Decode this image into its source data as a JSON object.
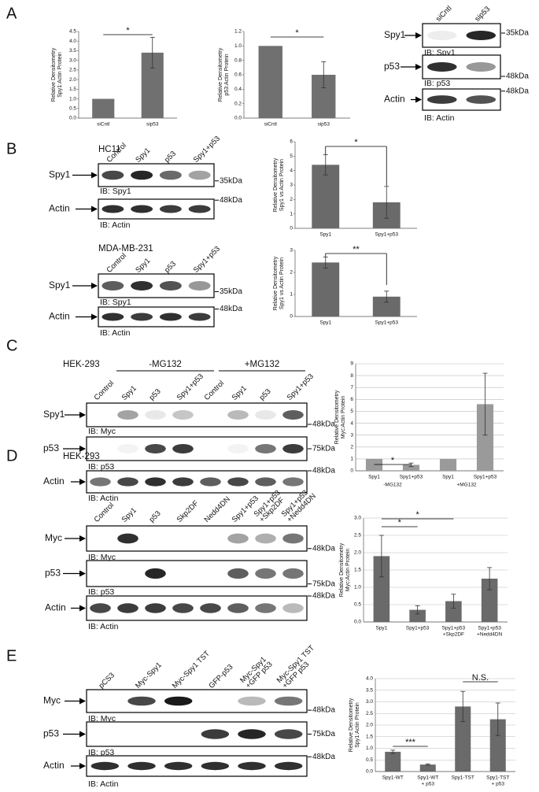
{
  "panel_labels": [
    "A",
    "B",
    "C",
    "D",
    "E"
  ],
  "blots": [
    {
      "lanes": [
        "siCntl",
        "sip53"
      ],
      "rows": [
        {
          "label": "Spy1",
          "ib": "IB: Spy1",
          "marker": "35kDa"
        },
        {
          "label": "p53",
          "ib": "IB: p53",
          "marker": "48kDa"
        },
        {
          "label": "Actin",
          "ib": "IB: Actin",
          "marker": "48kDa"
        }
      ]
    },
    {
      "cell_line": "HC11",
      "lanes": [
        "Control",
        "Spy1",
        "p53",
        "Spy1+p53"
      ],
      "rows": [
        {
          "label": "Spy1",
          "ib": "IB: Spy1",
          "marker": "35kDa"
        },
        {
          "label": "Actin",
          "ib": "IB: Actin",
          "marker": "48kDa"
        }
      ]
    },
    {
      "cell_line": "MDA-MB-231",
      "lanes": [
        "Control",
        "Spy1",
        "p53",
        "Spy1+p53"
      ],
      "rows": [
        {
          "label": "Spy1",
          "ib": "IB: Spy1",
          "marker": "35kDa"
        },
        {
          "label": "Actin",
          "ib": "IB: Actin",
          "marker": "48kDa"
        }
      ]
    },
    {
      "cell_line": "HEK-293",
      "groups": [
        "-MG132",
        "+MG132"
      ],
      "lanes": [
        "Control",
        "Spy1",
        "p53",
        "Spy1+p53",
        "Control",
        "Spy1",
        "p53",
        "Spy1+p53"
      ],
      "rows": [
        {
          "label": "Spy1",
          "ib": "IB: Myc",
          "marker": "48kDa"
        },
        {
          "label": "p53",
          "ib": "IB: p53",
          "marker": "75kDa"
        },
        {
          "label": "Actin",
          "ib": "IB: Actin",
          "marker": "48kDa"
        }
      ]
    },
    {
      "cell_line": "HEK-293",
      "lanes": [
        "Control",
        "Spy1",
        "p53",
        "Skp2DF",
        "Nedd4DN",
        "Spy1+p53",
        [
          "Spy1+p53",
          "+Skp2DF"
        ],
        [
          "Spy1+p53",
          "+Nedd4DN"
        ]
      ],
      "rows": [
        {
          "label": "Myc",
          "ib": "IB: Myc",
          "marker": "48kDa"
        },
        {
          "label": "p53",
          "ib": "IB: p53",
          "marker": "75kDa"
        },
        {
          "label": "Actin",
          "ib": "IB: Actin",
          "marker": "48kDa"
        }
      ]
    },
    {
      "lanes": [
        "pCS3",
        "Myc-Spy1",
        "Myc-Spy1 TST",
        "GFP-p53",
        [
          "Myc-Spy1",
          "+GFP p53"
        ],
        [
          "Myc-Spy1 TST",
          "+GFP p53"
        ]
      ],
      "rows": [
        {
          "label": "Myc",
          "ib": "IB: Myc",
          "marker": "48kDa"
        },
        {
          "label": "p53",
          "ib": "IB: p53",
          "marker": "75kDa"
        },
        {
          "label": "Actin",
          "ib": "IB: Actin",
          "marker": "48kDa"
        }
      ]
    }
  ],
  "chart_data": [
    {
      "type": "bar",
      "y_label": [
        "Relative Densitometry",
        "Spy1:Actin Protein"
      ],
      "categories": [
        "siCntl",
        "sip53"
      ],
      "values": [
        1,
        3.4
      ],
      "errors": [
        0,
        0.8
      ],
      "color": "#707070",
      "grid": false,
      "ylim": [
        0,
        4.5
      ],
      "yticks": [
        {
          "value": 0,
          "label": "0.0"
        },
        {
          "value": 0.5,
          "label": "0.5"
        },
        {
          "value": 1,
          "label": "1.0"
        },
        {
          "value": 1.5,
          "label": "1.5"
        },
        {
          "value": 2,
          "label": "2.0"
        },
        {
          "value": 2.5,
          "label": "2.5"
        },
        {
          "value": 3,
          "label": "3.0"
        },
        {
          "value": 3.5,
          "label": "3.5"
        },
        {
          "value": 4,
          "label": "4.0"
        },
        {
          "value": 4.5,
          "label": "4.5"
        }
      ],
      "annotations": [
        "*"
      ]
    },
    {
      "type": "bar",
      "y_label": [
        "Relative Densitometry",
        "p53:Actin Protein"
      ],
      "categories": [
        "siCntl",
        "sip53"
      ],
      "values": [
        1,
        0.6
      ],
      "errors": [
        0,
        0.18
      ],
      "color": "#707070",
      "grid": false,
      "ylim": [
        0,
        1.2
      ],
      "yticks": [
        {
          "value": 0,
          "label": "0.0"
        },
        {
          "value": 0.2,
          "label": "0.2"
        },
        {
          "value": 0.4,
          "label": "0.4"
        },
        {
          "value": 0.6,
          "label": "0.6"
        },
        {
          "value": 0.8,
          "label": "0.8"
        },
        {
          "value": 1,
          "label": "1.0"
        },
        {
          "value": 1.2,
          "label": "1.2"
        }
      ],
      "annotations": [
        "*"
      ]
    },
    {
      "type": "bar",
      "y_label": [
        "Relative Densitometry",
        "Spy1 vs Actin Protein"
      ],
      "categories": [
        "Spy1",
        "Spy1+p53"
      ],
      "values": [
        4.4,
        1.8
      ],
      "errors": [
        0.7,
        1.1
      ],
      "color": "#6a6a6a",
      "grid": false,
      "ylim": [
        0,
        6
      ],
      "yticks": [
        0,
        1,
        2,
        3,
        4,
        5,
        6
      ],
      "annotations": [
        "*"
      ]
    },
    {
      "type": "bar",
      "y_label": [
        "Relative Densitometry",
        "Spy1 vs Actin Protein"
      ],
      "categories": [
        "Spy1",
        "Spy1+p53"
      ],
      "values": [
        2.45,
        0.9
      ],
      "errors": [
        0.25,
        0.25
      ],
      "color": "#6a6a6a",
      "grid": false,
      "ylim": [
        0,
        3
      ],
      "yticks": [
        0,
        1,
        2,
        3
      ],
      "annotations": [
        "**"
      ]
    },
    {
      "type": "bar",
      "y_label": [
        "Relative Densitometry",
        "Myc:Actin Protein"
      ],
      "categories": [
        "Spy1",
        "Spy1+p53",
        "Spy1",
        "Spy1+p53"
      ],
      "group_labels": [
        "-MG132",
        "+MG132"
      ],
      "values": [
        1,
        0.5,
        1,
        5.6
      ],
      "errors": [
        0,
        0.15,
        0,
        2.6
      ],
      "color": "#9a9a9a",
      "grid": true,
      "ylim": [
        0,
        9
      ],
      "yticks": [
        0,
        1,
        2,
        3,
        4,
        5,
        6,
        7,
        8,
        9
      ],
      "annotations": [
        "*"
      ]
    },
    {
      "type": "bar",
      "y_label": [
        "Relative Densitometry",
        "Myc:Actin Protein"
      ],
      "categories": [
        "Spy1",
        "Spy1+p53",
        [
          "Spy1+p53",
          "+Skp2DF"
        ],
        [
          "Spy1+p53",
          "+Nedd4DN"
        ]
      ],
      "values": [
        1.9,
        0.35,
        0.6,
        1.25
      ],
      "errors": [
        0.6,
        0.12,
        0.2,
        0.32
      ],
      "color": "#6a6a6a",
      "grid": true,
      "ylim": [
        0,
        3
      ],
      "yticks": [
        {
          "value": 0,
          "label": "0.0"
        },
        {
          "value": 0.5,
          "label": "0.5"
        },
        {
          "value": 1,
          "label": "1.0"
        },
        {
          "value": 1.5,
          "label": "1.5"
        },
        {
          "value": 2,
          "label": "2.0"
        },
        {
          "value": 2.5,
          "label": "2.5"
        },
        {
          "value": 3,
          "label": "3.0"
        }
      ],
      "annotations": [
        "*",
        "*"
      ]
    },
    {
      "type": "bar",
      "y_label": [
        "Relative Densitometry",
        "Spy1:Actin Protein"
      ],
      "categories": [
        "Spy1-WT",
        [
          "Spy1-WT",
          "+ p53"
        ],
        "Spy1-TST",
        [
          "Spy1-TST",
          "+ p53"
        ]
      ],
      "values": [
        0.85,
        0.3,
        2.8,
        2.25
      ],
      "errors": [
        0.07,
        0.03,
        0.65,
        0.7
      ],
      "color": "#6a6a6a",
      "grid": true,
      "ylim": [
        0,
        4
      ],
      "yticks": [
        {
          "value": 0,
          "label": "0.0"
        },
        {
          "value": 0.5,
          "label": "0.5"
        },
        {
          "value": 1,
          "label": "1.0"
        },
        {
          "value": 1.5,
          "label": "1.5"
        },
        {
          "value": 2,
          "label": "2.0"
        },
        {
          "value": 2.5,
          "label": "2.5"
        },
        {
          "value": 3,
          "label": "3.0"
        },
        {
          "value": 3.5,
          "label": "3.5"
        },
        {
          "value": 4,
          "label": "4.0"
        }
      ],
      "annotations": [
        "***",
        "N.S."
      ]
    }
  ]
}
